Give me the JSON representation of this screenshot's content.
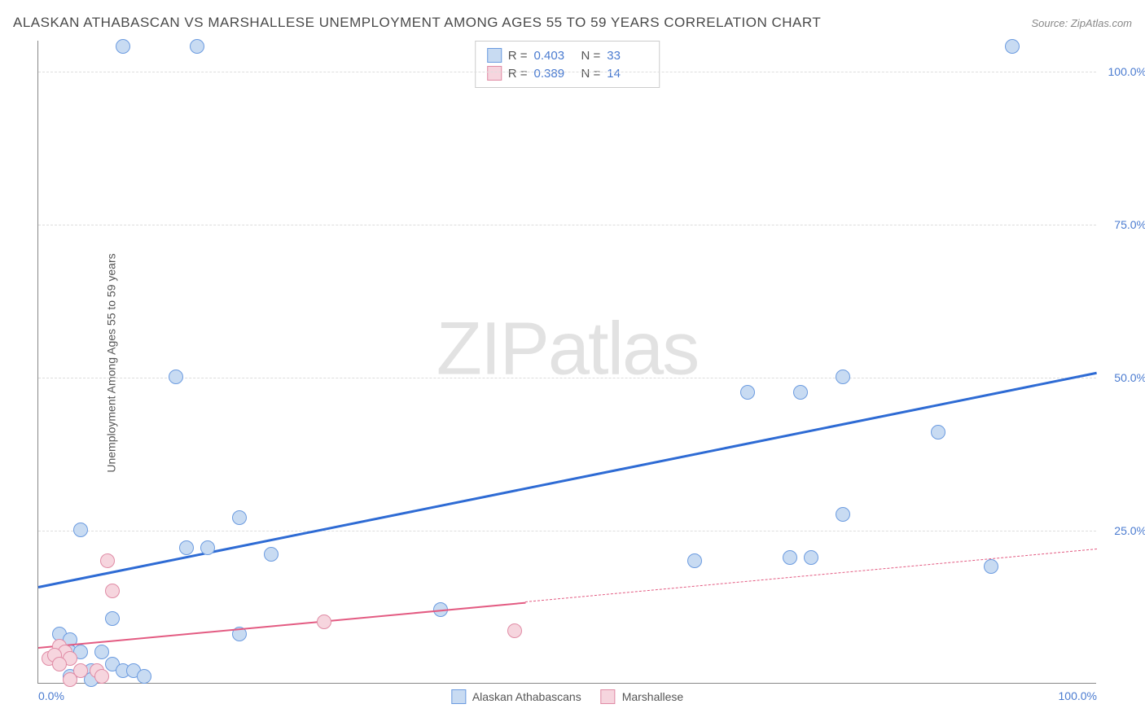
{
  "header": {
    "title": "ALASKAN ATHABASCAN VS MARSHALLESE UNEMPLOYMENT AMONG AGES 55 TO 59 YEARS CORRELATION CHART",
    "source": "Source: ZipAtlas.com"
  },
  "watermark": {
    "bold": "ZIP",
    "thin": "atlas"
  },
  "chart": {
    "type": "scatter",
    "ylabel": "Unemployment Among Ages 55 to 59 years",
    "xlim": [
      0,
      100
    ],
    "ylim": [
      0,
      105
    ],
    "yticks": [
      25,
      50,
      75,
      100
    ],
    "ytick_labels": [
      "25.0%",
      "50.0%",
      "75.0%",
      "100.0%"
    ],
    "xticks": [
      0,
      100
    ],
    "xtick_labels": [
      "0.0%",
      "100.0%"
    ],
    "grid_color": "#dddddd",
    "axis_color": "#888888",
    "background_color": "#ffffff",
    "point_radius": 9,
    "point_stroke_width": 1,
    "series": [
      {
        "name": "Alaskan Athabascans",
        "fill_color": "#c8dbf2",
        "stroke_color": "#6b9be0",
        "line_color": "#2e6bd4",
        "line_width": 3,
        "R": "0.403",
        "N": "33",
        "regression": {
          "x1": 0,
          "y1": 16,
          "x2": 100,
          "y2": 51,
          "solid_until": 100
        },
        "points": [
          {
            "x": 8,
            "y": 104
          },
          {
            "x": 15,
            "y": 104
          },
          {
            "x": 92,
            "y": 104
          },
          {
            "x": 13,
            "y": 50
          },
          {
            "x": 67,
            "y": 47.5
          },
          {
            "x": 72,
            "y": 47.5
          },
          {
            "x": 85,
            "y": 41
          },
          {
            "x": 76,
            "y": 50
          },
          {
            "x": 76,
            "y": 27.5
          },
          {
            "x": 19,
            "y": 27
          },
          {
            "x": 22,
            "y": 21
          },
          {
            "x": 16,
            "y": 22
          },
          {
            "x": 14,
            "y": 22
          },
          {
            "x": 4,
            "y": 25
          },
          {
            "x": 73,
            "y": 20.5
          },
          {
            "x": 71,
            "y": 20.5
          },
          {
            "x": 90,
            "y": 19
          },
          {
            "x": 62,
            "y": 20
          },
          {
            "x": 7,
            "y": 10.5
          },
          {
            "x": 19,
            "y": 8
          },
          {
            "x": 38,
            "y": 12
          },
          {
            "x": 2,
            "y": 8
          },
          {
            "x": 3,
            "y": 7
          },
          {
            "x": 3,
            "y": 5
          },
          {
            "x": 4,
            "y": 5
          },
          {
            "x": 6,
            "y": 5
          },
          {
            "x": 7,
            "y": 3
          },
          {
            "x": 8,
            "y": 2
          },
          {
            "x": 9,
            "y": 2
          },
          {
            "x": 5,
            "y": 2
          },
          {
            "x": 5,
            "y": 0.5
          },
          {
            "x": 3,
            "y": 1
          },
          {
            "x": 10,
            "y": 1
          }
        ]
      },
      {
        "name": "Marshallese",
        "fill_color": "#f6d5de",
        "stroke_color": "#e08ba5",
        "line_color": "#e35b82",
        "line_width": 2,
        "R": "0.389",
        "N": "14",
        "regression": {
          "x1": 0,
          "y1": 6,
          "x2": 100,
          "y2": 22,
          "solid_until": 46
        },
        "points": [
          {
            "x": 6.5,
            "y": 20
          },
          {
            "x": 7,
            "y": 15
          },
          {
            "x": 27,
            "y": 10
          },
          {
            "x": 45,
            "y": 8.5
          },
          {
            "x": 2,
            "y": 6
          },
          {
            "x": 2.5,
            "y": 5
          },
          {
            "x": 1,
            "y": 4
          },
          {
            "x": 1.5,
            "y": 4.5
          },
          {
            "x": 3,
            "y": 4
          },
          {
            "x": 2,
            "y": 3
          },
          {
            "x": 4,
            "y": 2
          },
          {
            "x": 5.5,
            "y": 2
          },
          {
            "x": 6,
            "y": 1
          },
          {
            "x": 3,
            "y": 0.5
          }
        ]
      }
    ]
  },
  "legend_bottom": [
    {
      "label": "Alaskan Athabascans",
      "fill": "#c8dbf2",
      "stroke": "#6b9be0"
    },
    {
      "label": "Marshallese",
      "fill": "#f6d5de",
      "stroke": "#e08ba5"
    }
  ]
}
